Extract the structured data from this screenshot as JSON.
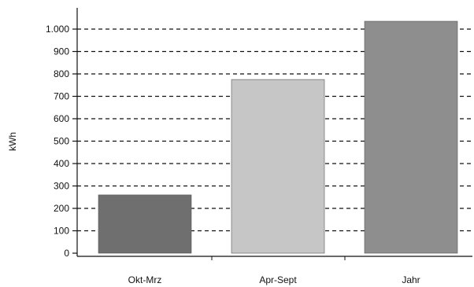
{
  "chart_data": {
    "type": "bar",
    "title": "",
    "xlabel": "",
    "ylabel": "kWh",
    "ylim": [
      0,
      1050
    ],
    "yticks": [
      0,
      100,
      200,
      300,
      400,
      500,
      600,
      700,
      800,
      900,
      1000
    ],
    "ytick_labels": [
      "0",
      "100",
      "200",
      "300",
      "400",
      "500",
      "600",
      "700",
      "800",
      "900",
      "1.000"
    ],
    "grid": "dashed horizontal",
    "categories": [
      "Okt-Mrz",
      "Apr-Sept",
      "Jahr"
    ],
    "values": [
      260,
      775,
      1035
    ],
    "colors": [
      "#6f6f6f",
      "#c6c6c6",
      "#8e8e8e"
    ]
  }
}
